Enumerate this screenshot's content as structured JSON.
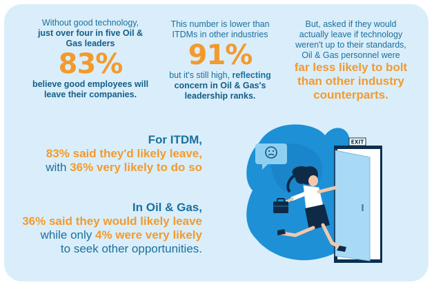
{
  "col1": {
    "line1": "Without good technology,",
    "line2": "just over four in five Oil &",
    "line3": "Gas leaders",
    "stat": "83%",
    "line4": "believe good employees will",
    "line5": "leave their companies."
  },
  "col2": {
    "line1": "This number is lower than",
    "line2": "ITDMs in other industries",
    "stat": "91%",
    "line3_pre": "but it's still high, ",
    "line3_bold": "reflecting",
    "line4": "concern in Oil & Gas's",
    "line5": "leadership ranks."
  },
  "col3": {
    "line1": "But, asked if they would",
    "line2": "actually leave if technology",
    "line3": "weren't up to their standards,",
    "line4": "Oil & Gas personnel were",
    "line5": "far less likely to bolt",
    "line6": "than other industry",
    "line7": "counterparts."
  },
  "itdm": {
    "line1": "For ITDM,",
    "line2": "83% said they'd likely leave,",
    "line3_pre": "with ",
    "line3_orange": "36% very likely to do so"
  },
  "oilgas": {
    "line1": "In Oil & Gas,",
    "line2": "36% said they would likely leave",
    "line3_pre": "while only ",
    "line3_orange": "4% were very likely",
    "line4": "to seek other opportunities."
  },
  "exit_sign": "EXIT",
  "colors": {
    "background": "#d9eefa",
    "blue_text": "#1b6f9e",
    "orange": "#f39a2d",
    "blob": "#1e90d6"
  },
  "icons": [
    "sad-face-speech-bubble-icon",
    "briefcase-icon",
    "exit-door-icon"
  ]
}
